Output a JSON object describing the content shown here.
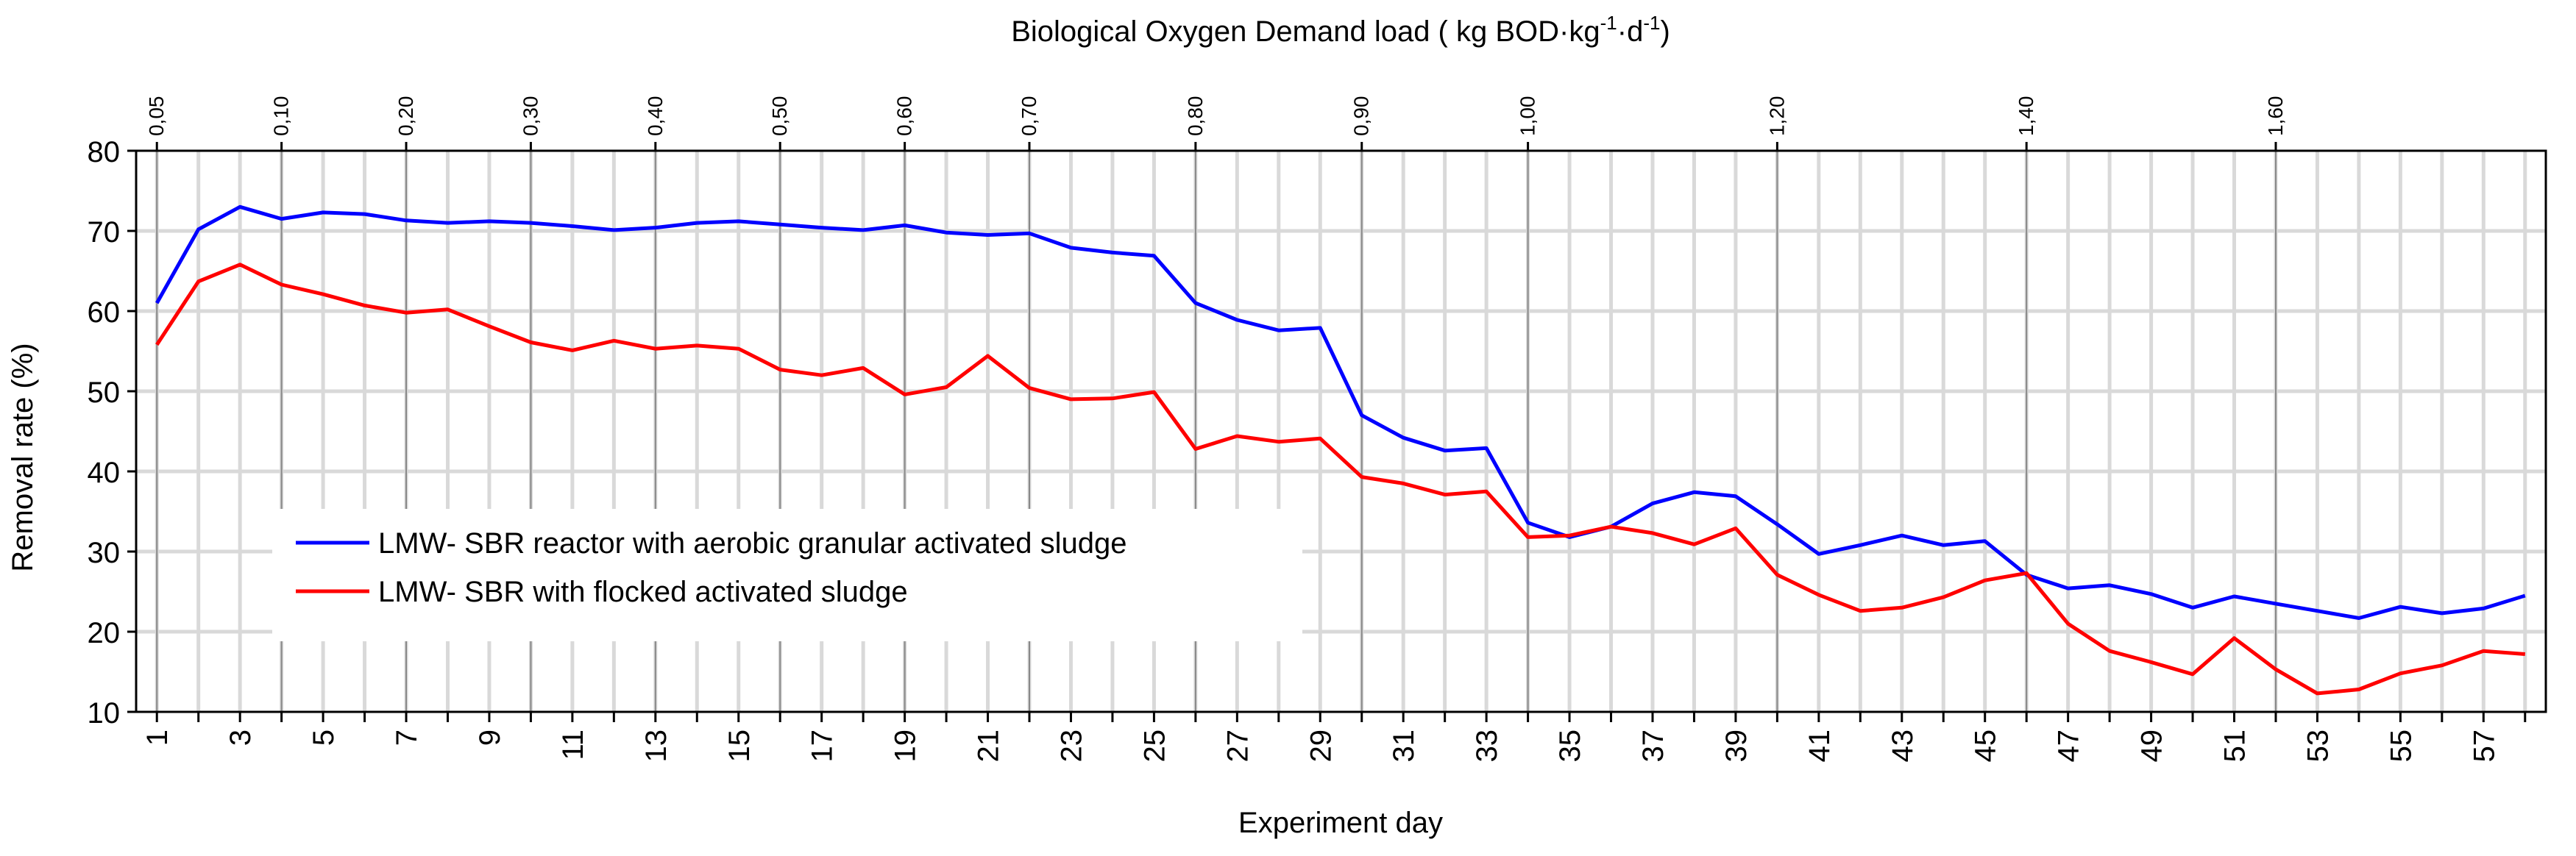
{
  "chart_data": {
    "type": "line",
    "title": "Biological Oxygen Demand load",
    "top_axis_label_parts": {
      "main": "Biological Oxygen Demand load ( kg BOD",
      "kg": "kg",
      "exp1": "-1",
      "d": "d",
      "exp2": "-1",
      "close": ")"
    },
    "xlabel": "Experiment day",
    "ylabel": "Removal rate (%)",
    "ylim": [
      10,
      80
    ],
    "yticks": [
      10,
      20,
      30,
      40,
      50,
      60,
      70,
      80
    ],
    "xlim": [
      0.5,
      58.5
    ],
    "xtick_labels": [
      "1",
      "3",
      "5",
      "7",
      "9",
      "11",
      "13",
      "15",
      "17",
      "19",
      "21",
      "23",
      "25",
      "27",
      "29",
      "31",
      "33",
      "35",
      "37",
      "39",
      "41",
      "43",
      "45",
      "47",
      "49",
      "51",
      "53",
      "55",
      "57"
    ],
    "x": [
      1,
      2,
      3,
      4,
      5,
      6,
      7,
      8,
      9,
      10,
      11,
      12,
      13,
      14,
      15,
      16,
      17,
      18,
      19,
      20,
      21,
      22,
      23,
      24,
      25,
      26,
      27,
      28,
      29,
      30,
      31,
      32,
      33,
      34,
      35,
      36,
      37,
      38,
      39,
      40,
      41,
      42,
      43,
      44,
      45,
      46,
      47,
      48,
      49,
      50,
      51,
      52,
      53,
      54,
      55,
      56,
      57,
      58
    ],
    "series": [
      {
        "name": "LMW- SBR reactor with aerobic granular activated sludge",
        "color": "#0000ff",
        "values": [
          61,
          70.2,
          73,
          71.5,
          72.3,
          72.1,
          71.3,
          71,
          71.2,
          71,
          70.6,
          70.1,
          70.4,
          71,
          71.2,
          70.8,
          70.4,
          70.1,
          70.7,
          69.8,
          69.5,
          69.7,
          67.9,
          67.3,
          66.9,
          61,
          58.9,
          57.6,
          57.9,
          47,
          44.2,
          42.6,
          42.9,
          33.6,
          31.8,
          33.1,
          36,
          37.4,
          36.9,
          33.4,
          29.7,
          30.8,
          32,
          30.8,
          31.3,
          27.1,
          25.4,
          25.8,
          24.7,
          23,
          24.4,
          23.5,
          22.6,
          21.7,
          23.1,
          22.3,
          22.9,
          24.5
        ]
      },
      {
        "name": "LMW- SBR with flocked activated sludge",
        "color": "#ff0000",
        "values": [
          55.8,
          63.7,
          65.8,
          63.3,
          62.1,
          60.7,
          59.8,
          60.2,
          58.1,
          56.1,
          55.1,
          56.3,
          55.3,
          55.7,
          55.3,
          52.7,
          52,
          52.9,
          49.6,
          50.5,
          54.4,
          50.4,
          49,
          49.1,
          49.9,
          42.8,
          44.4,
          43.7,
          44.1,
          39.3,
          38.5,
          37.1,
          37.5,
          31.8,
          32,
          33.1,
          32.3,
          30.9,
          32.9,
          27.1,
          24.6,
          22.6,
          23,
          24.3,
          26.4,
          27.3,
          21,
          17.6,
          16.2,
          14.7,
          19.2,
          15.3,
          12.3,
          12.8,
          14.8,
          15.8,
          17.6,
          17.2
        ]
      }
    ],
    "legend": {
      "placement": "center-left"
    },
    "secondary_x_axis": {
      "label": "Biological Oxygen Demand load ( kg BOD·kg-1·d-1)",
      "ticks": [
        {
          "label": "0,05",
          "day": 1
        },
        {
          "label": "0,10",
          "day": 4
        },
        {
          "label": "0,20",
          "day": 7
        },
        {
          "label": "0,30",
          "day": 10
        },
        {
          "label": "0,40",
          "day": 13
        },
        {
          "label": "0,50",
          "day": 16
        },
        {
          "label": "0,60",
          "day": 19
        },
        {
          "label": "0,70",
          "day": 22
        },
        {
          "label": "0,80",
          "day": 26
        },
        {
          "label": "0,90",
          "day": 30
        },
        {
          "label": "1,00",
          "day": 34
        },
        {
          "label": "1,20",
          "day": 40
        },
        {
          "label": "1,40",
          "day": 46
        },
        {
          "label": "1,60",
          "day": 52
        }
      ]
    },
    "grid": true
  }
}
